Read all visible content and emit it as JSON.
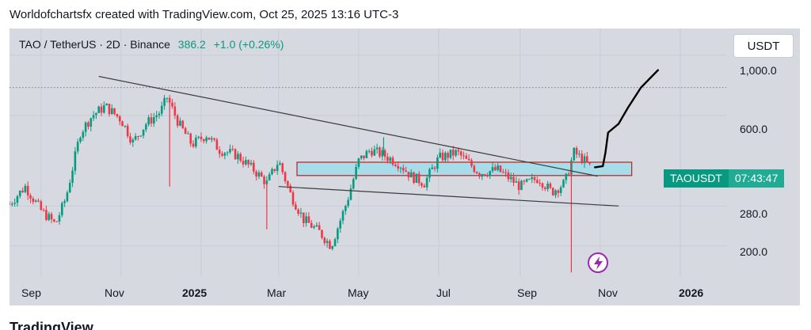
{
  "header": {
    "title": "Worldofchartsfx created with TradingView.com, Oct 25, 2025 13:16 UTC-3"
  },
  "symbol": {
    "name": "TAO / TetherUS · 2D · Binance",
    "price": "386.2",
    "change": "+1.0 (+0.26%)"
  },
  "currency": "USDT",
  "badge": {
    "ticker": "TAOUSDT",
    "countdown": "07:43:47"
  },
  "footer": {
    "logo_text": "TradingView"
  },
  "colors": {
    "up": "#089981",
    "down": "#f23645",
    "zone_fill": "#a8dce8",
    "zone_border": "#b22222",
    "background": "#d6d9e0"
  },
  "chart_data": {
    "type": "candlestick",
    "y_scale": "log",
    "ylim": [
      155,
      1250
    ],
    "ytick_labels": [
      "1,000.0",
      "600.0",
      "280.0",
      "200.0"
    ],
    "ytick_values": [
      1000,
      600,
      280,
      200
    ],
    "x_labels": [
      "Sep",
      "Nov",
      "2025",
      "Mar",
      "May",
      "Jul",
      "Sep",
      "Nov",
      "2026"
    ],
    "x_label_dates": [
      "2024-09-01",
      "2024-11-01",
      "2025-01-01",
      "2025-03-01",
      "2025-05-01",
      "2025-07-01",
      "2025-09-01",
      "2025-11-01",
      "2026-01-01"
    ],
    "x_range": [
      "2024-08-08",
      "2026-02-05"
    ],
    "reference_level": 760,
    "close_path": [
      [
        "2024-08-08",
        285
      ],
      [
        "2024-08-20",
        330
      ],
      [
        "2024-09-01",
        270
      ],
      [
        "2024-09-12",
        240
      ],
      [
        "2024-09-20",
        300
      ],
      [
        "2024-10-01",
        520
      ],
      [
        "2024-10-10",
        600
      ],
      [
        "2024-10-20",
        650
      ],
      [
        "2024-11-01",
        580
      ],
      [
        "2024-11-10",
        480
      ],
      [
        "2024-11-20",
        560
      ],
      [
        "2024-12-01",
        620
      ],
      [
        "2024-12-06",
        700
      ],
      [
        "2024-12-15",
        560
      ],
      [
        "2024-12-25",
        470
      ],
      [
        "2025-01-05",
        510
      ],
      [
        "2025-01-15",
        450
      ],
      [
        "2025-01-28",
        430
      ],
      [
        "2025-02-10",
        380
      ],
      [
        "2025-02-20",
        340
      ],
      [
        "2025-03-01",
        410
      ],
      [
        "2025-03-10",
        310
      ],
      [
        "2025-03-20",
        250
      ],
      [
        "2025-04-01",
        225
      ],
      [
        "2025-04-10",
        200
      ],
      [
        "2025-04-22",
        290
      ],
      [
        "2025-05-01",
        410
      ],
      [
        "2025-05-10",
        450
      ],
      [
        "2025-05-20",
        430
      ],
      [
        "2025-06-01",
        400
      ],
      [
        "2025-06-10",
        360
      ],
      [
        "2025-06-20",
        340
      ],
      [
        "2025-07-01",
        420
      ],
      [
        "2025-07-15",
        440
      ],
      [
        "2025-08-01",
        370
      ],
      [
        "2025-08-15",
        380
      ],
      [
        "2025-09-01",
        330
      ],
      [
        "2025-09-15",
        355
      ],
      [
        "2025-09-25",
        315
      ],
      [
        "2025-10-05",
        340
      ],
      [
        "2025-10-12",
        440
      ],
      [
        "2025-10-20",
        410
      ],
      [
        "2025-10-25",
        386
      ]
    ],
    "spikes": [
      {
        "date": "2024-12-08",
        "low": 330
      },
      {
        "date": "2025-02-20",
        "low": 230
      },
      {
        "date": "2025-05-20",
        "low": 500,
        "high_only": true
      },
      {
        "date": "2025-10-10",
        "low": 160
      }
    ],
    "trendlines": [
      {
        "from": [
          "2024-10-15",
          835
        ],
        "to": [
          "2025-10-30",
          360
        ]
      },
      {
        "from": [
          "2025-03-01",
          330
        ],
        "to": [
          "2025-11-15",
          280
        ]
      }
    ],
    "zone": {
      "from": "2025-03-15",
      "to": "2025-11-25",
      "low": 362,
      "high": 405
    },
    "projection": [
      [
        "2025-10-28",
        388
      ],
      [
        "2025-11-03",
        392
      ],
      [
        "2025-11-05",
        440
      ],
      [
        "2025-11-07",
        520
      ],
      [
        "2025-11-15",
        560
      ],
      [
        "2025-11-22",
        640
      ],
      [
        "2025-12-02",
        760
      ],
      [
        "2025-12-15",
        880
      ]
    ]
  }
}
